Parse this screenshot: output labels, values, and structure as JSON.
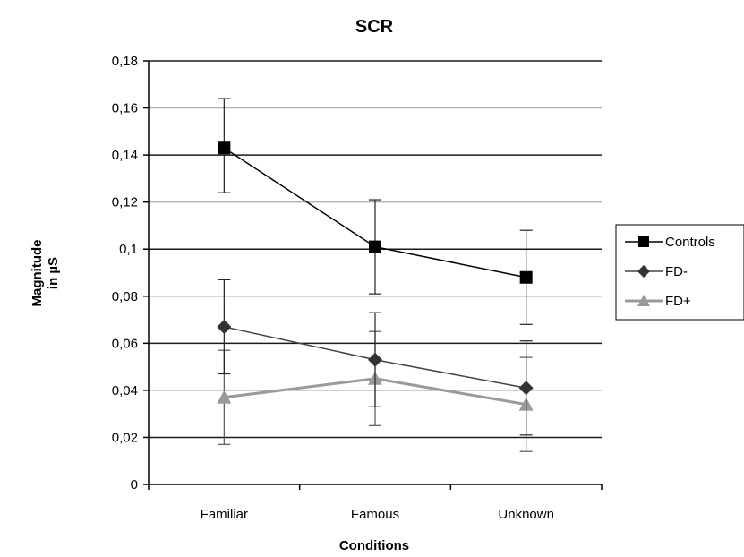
{
  "chart_data": {
    "type": "line",
    "title": "SCR",
    "xlabel": "Conditions",
    "ylabel": [
      "Magnitude",
      "in µS"
    ],
    "categories": [
      "Familiar",
      "Famous",
      "Unknown"
    ],
    "ylim": [
      0,
      0.18
    ],
    "yticks": [
      0,
      0.02,
      0.04,
      0.06,
      0.08,
      0.1,
      0.12,
      0.14,
      0.16,
      0.18
    ],
    "ytick_labels": [
      "0",
      "0,02",
      "0,04",
      "0,06",
      "0,08",
      "0,1",
      "0,12",
      "0,14",
      "0,16",
      "0,18"
    ],
    "grid": true,
    "legend_position": "right",
    "series": [
      {
        "name": "Controls",
        "marker": "square",
        "color": "#000000",
        "line_color": "#000000",
        "values": [
          0.143,
          0.101,
          0.088
        ],
        "err_low": [
          0.124,
          0.081,
          0.068
        ],
        "err_high": [
          0.164,
          0.121,
          0.108
        ]
      },
      {
        "name": "FD-",
        "marker": "diamond",
        "color": "#333333",
        "line_color": "#444444",
        "values": [
          0.067,
          0.053,
          0.041
        ],
        "err_low": [
          0.047,
          0.033,
          0.021
        ],
        "err_high": [
          0.087,
          0.073,
          0.061
        ]
      },
      {
        "name": "FD+",
        "marker": "triangle",
        "color": "#9a9a9a",
        "line_color": "#9a9a9a",
        "values": [
          0.037,
          0.045,
          0.034
        ],
        "err_low": [
          0.017,
          0.025,
          0.014
        ],
        "err_high": [
          0.057,
          0.065,
          0.054
        ]
      }
    ]
  }
}
